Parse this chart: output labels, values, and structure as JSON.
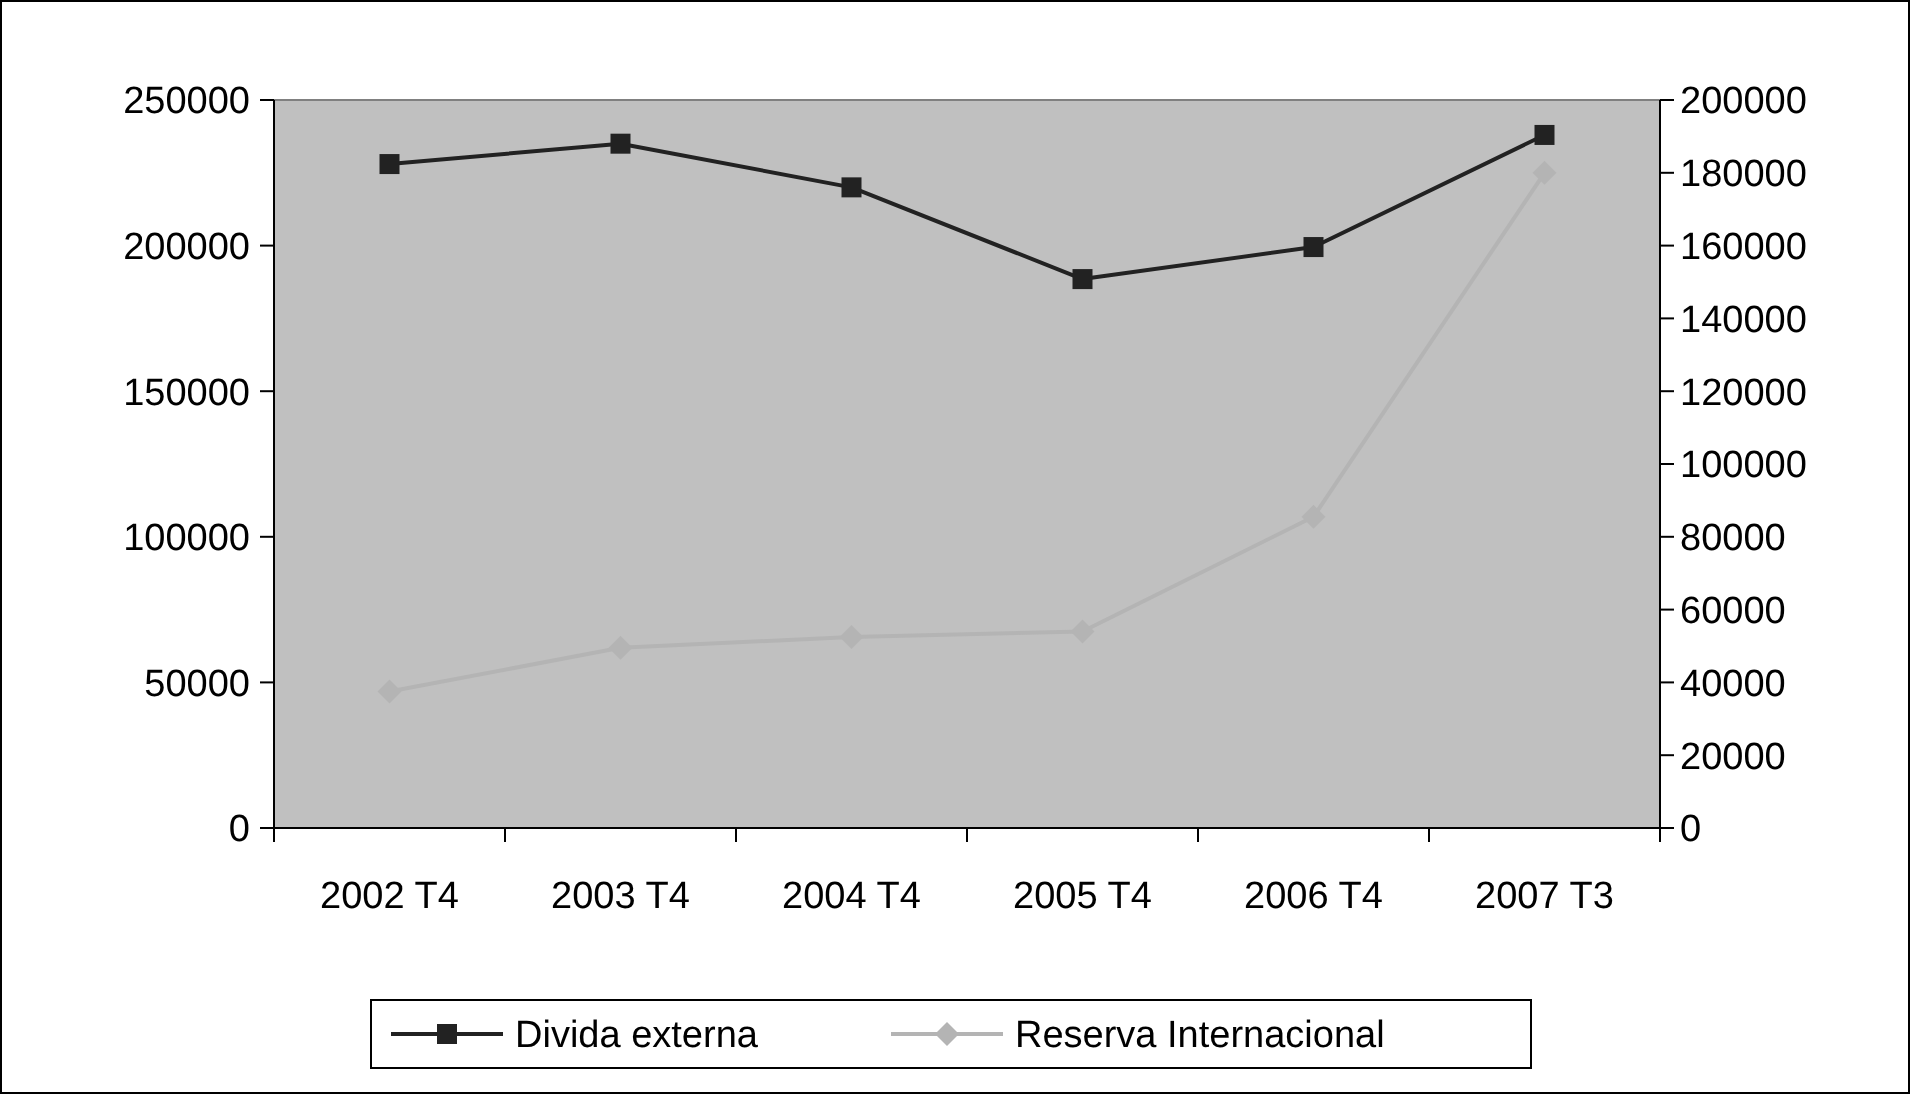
{
  "chart_data": {
    "type": "line",
    "categories": [
      "2002 T4",
      "2003 T4",
      "2004 T4",
      "2005 T4",
      "2006 T4",
      "2007 T3"
    ],
    "series": [
      {
        "name": "Divida externa",
        "color": "#222222",
        "values": [
          228000,
          235000,
          220000,
          188500,
          199500,
          238000
        ],
        "marker": "square"
      },
      {
        "name": "Reserva Internacional",
        "color": "#b4b4b4",
        "values": [
          37500,
          49500,
          52500,
          54000,
          85500,
          180000
        ],
        "marker": "diamond",
        "axis": "y2"
      }
    ],
    "ylim": [
      0,
      250000
    ],
    "yticks": [
      0,
      50000,
      100000,
      150000,
      200000,
      250000
    ],
    "y2lim": [
      0,
      200000
    ],
    "y2ticks": [
      0,
      20000,
      40000,
      60000,
      80000,
      100000,
      120000,
      140000,
      160000,
      180000,
      200000
    ],
    "legend": "bottom",
    "grid": false
  }
}
